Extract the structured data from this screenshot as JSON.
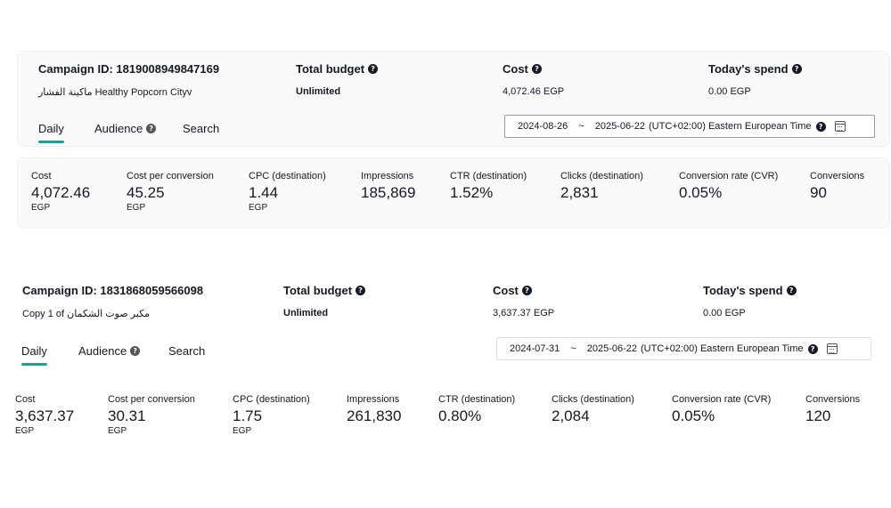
{
  "campaigns": [
    {
      "campaign_id_label": "Campaign ID: 1819008949847169",
      "campaign_name": "ماكينة الفشار Healthy Popcorn Cityv",
      "total_budget_label": "Total budget",
      "total_budget_value": "Unlimited",
      "cost_label": "Cost",
      "cost_value": "4,072.46 EGP",
      "todays_spend_label": "Today's spend",
      "todays_spend_value": "0.00 EGP",
      "tabs": [
        "Daily",
        "Audience",
        "Search"
      ],
      "date_start": "2024-08-26",
      "date_sep": "~",
      "date_end": "2025-06-22",
      "timezone": "(UTC+02:00) Eastern European Time",
      "metrics": [
        {
          "label": "Cost",
          "value": "4,072.46",
          "unit": "EGP"
        },
        {
          "label": "Cost per conversion",
          "value": "45.25",
          "unit": "EGP"
        },
        {
          "label": "CPC (destination)",
          "value": "1.44",
          "unit": "EGP"
        },
        {
          "label": "Impressions",
          "value": "185,869",
          "unit": ""
        },
        {
          "label": "CTR (destination)",
          "value": "1.52%",
          "unit": ""
        },
        {
          "label": "Clicks (destination)",
          "value": "2,831",
          "unit": ""
        },
        {
          "label": "Conversion rate (CVR)",
          "value": "0.05%",
          "unit": ""
        },
        {
          "label": "Conversions",
          "value": "90",
          "unit": ""
        }
      ]
    },
    {
      "campaign_id_label": "Campaign ID: 1831868059566098",
      "campaign_name": "Copy 1 of مكبر صوت الشكمان",
      "total_budget_label": "Total budget",
      "total_budget_value": "Unlimited",
      "cost_label": "Cost",
      "cost_value": "3,637.37 EGP",
      "todays_spend_label": "Today's spend",
      "todays_spend_value": "0.00 EGP",
      "tabs": [
        "Daily",
        "Audience",
        "Search"
      ],
      "date_start": "2024-07-31",
      "date_sep": "~",
      "date_end": "2025-06-22",
      "timezone": "(UTC+02:00) Eastern European Time",
      "metrics": [
        {
          "label": "Cost",
          "value": "3,637.37",
          "unit": "EGP"
        },
        {
          "label": "Cost per conversion",
          "value": "30.31",
          "unit": "EGP"
        },
        {
          "label": "CPC (destination)",
          "value": "1.75",
          "unit": "EGP"
        },
        {
          "label": "Impressions",
          "value": "261,830",
          "unit": ""
        },
        {
          "label": "CTR (destination)",
          "value": "0.80%",
          "unit": ""
        },
        {
          "label": "Clicks (destination)",
          "value": "2,084",
          "unit": ""
        },
        {
          "label": "Conversion rate (CVR)",
          "value": "0.05%",
          "unit": ""
        },
        {
          "label": "Conversions",
          "value": "120",
          "unit": ""
        }
      ]
    }
  ],
  "icons": {
    "help": "question-circle-icon",
    "calendar": "calendar-icon"
  }
}
